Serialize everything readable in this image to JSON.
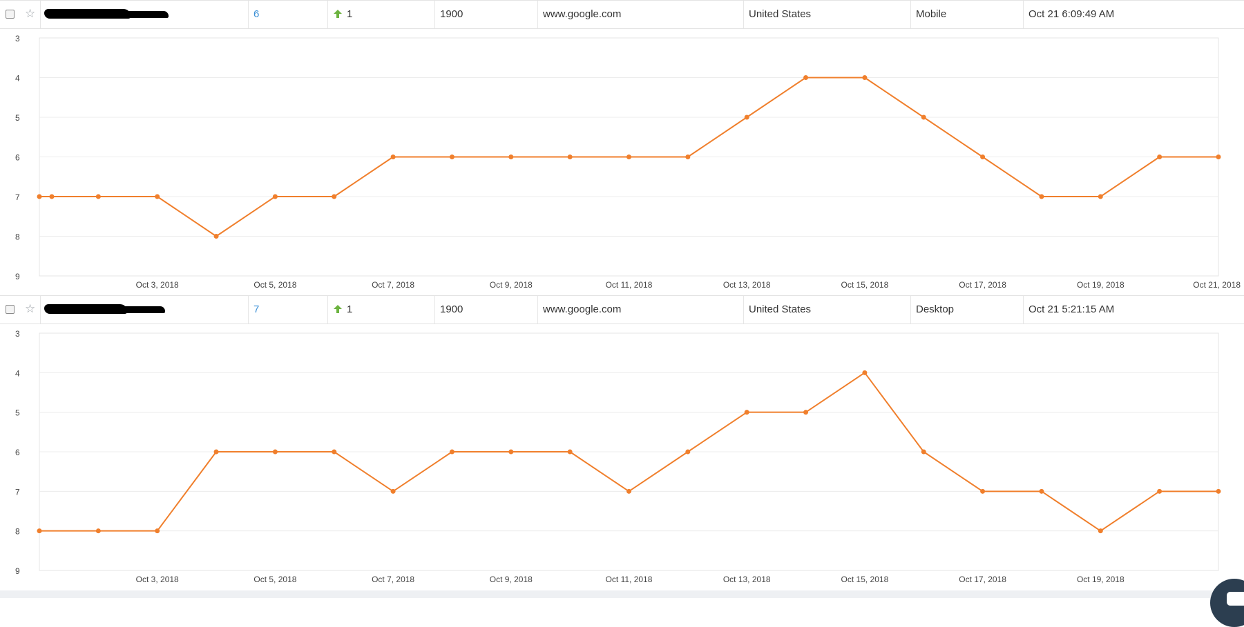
{
  "rows": [
    {
      "rank": "6",
      "change": "1",
      "volume": "1900",
      "search_engine": "www.google.com",
      "country": "United States",
      "device": "Mobile",
      "updated": "Oct 21 6:09:49 AM"
    },
    {
      "rank": "7",
      "change": "1",
      "volume": "1900",
      "search_engine": "www.google.com",
      "country": "United States",
      "device": "Desktop",
      "updated": "Oct 21 5:21:15 AM"
    }
  ],
  "icons": {
    "checkbox": "checkbox",
    "favorite": "star-icon",
    "rank_change": "arrow-up-icon",
    "redaction": "redacted-keyword"
  },
  "colors": {
    "line": "#f07f2c",
    "rank_link": "#3a8fd6",
    "arrow_up": "#6cb33f",
    "grid": "#ececec"
  },
  "chart_data": [
    {
      "type": "line",
      "y_reversed": true,
      "ylim": [
        3,
        9
      ],
      "y_ticks": [
        "3",
        "4",
        "5",
        "6",
        "7",
        "8",
        "9"
      ],
      "x_ticks": [
        "Oct 3, 2018",
        "Oct 5, 2018",
        "Oct 7, 2018",
        "Oct 9, 2018",
        "Oct 11, 2018",
        "Oct 13, 2018",
        "Oct 15, 2018",
        "Oct 17, 2018",
        "Oct 19, 2018",
        "Oct 21, 2018"
      ],
      "grid": "horizontal",
      "series": [
        {
          "x": [
            "2018-10-01",
            "2018-10-01",
            "2018-10-02",
            "2018-10-03",
            "2018-10-04",
            "2018-10-05",
            "2018-10-06",
            "2018-10-07",
            "2018-10-08",
            "2018-10-09",
            "2018-10-10",
            "2018-10-11",
            "2018-10-12",
            "2018-10-13",
            "2018-10-14",
            "2018-10-15",
            "2018-10-16",
            "2018-10-17",
            "2018-10-18",
            "2018-10-19",
            "2018-10-20",
            "2018-10-21"
          ],
          "y": [
            7,
            7,
            7,
            7,
            8,
            7,
            7,
            6,
            6,
            6,
            6,
            6,
            6,
            5,
            4,
            4,
            5,
            6,
            7,
            7,
            6,
            6
          ]
        }
      ]
    },
    {
      "type": "line",
      "y_reversed": true,
      "ylim": [
        3,
        9
      ],
      "y_ticks": [
        "3",
        "4",
        "5",
        "6",
        "7",
        "8",
        "9"
      ],
      "x_ticks": [
        "Oct 3, 2018",
        "Oct 5, 2018",
        "Oct 7, 2018",
        "Oct 9, 2018",
        "Oct 11, 2018",
        "Oct 13, 2018",
        "Oct 15, 2018",
        "Oct 17, 2018",
        "Oct 19, 2018"
      ],
      "grid": "horizontal",
      "series": [
        {
          "x": [
            "2018-10-01",
            "2018-10-02",
            "2018-10-03",
            "2018-10-04",
            "2018-10-05",
            "2018-10-06",
            "2018-10-07",
            "2018-10-08",
            "2018-10-09",
            "2018-10-10",
            "2018-10-11",
            "2018-10-12",
            "2018-10-13",
            "2018-10-14",
            "2018-10-15",
            "2018-10-16",
            "2018-10-17",
            "2018-10-18",
            "2018-10-19",
            "2018-10-20",
            "2018-10-21"
          ],
          "y": [
            8,
            8,
            8,
            6,
            6,
            6,
            7,
            6,
            6,
            6,
            7,
            6,
            5,
            5,
            4,
            6,
            7,
            7,
            8,
            7,
            7
          ]
        }
      ]
    }
  ]
}
